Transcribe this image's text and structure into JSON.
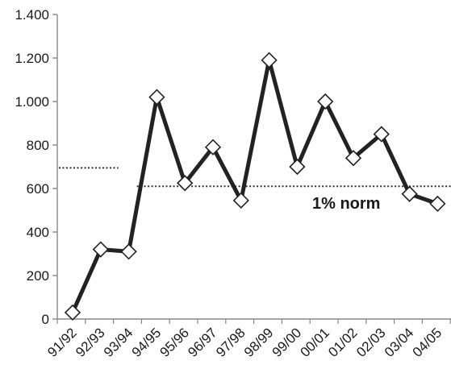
{
  "chart_data": {
    "type": "line",
    "categories": [
      "91/92",
      "92/93",
      "93/94",
      "94/95",
      "95/96",
      "96/97",
      "97/98",
      "98/99",
      "99/00",
      "00/01",
      "01/02",
      "02/03",
      "03/04",
      "04/05"
    ],
    "series": [
      {
        "values": [
          30,
          320,
          310,
          1020,
          625,
          790,
          545,
          1190,
          700,
          1000,
          740,
          850,
          575,
          530
        ],
        "marker": "diamond",
        "color": "#222222"
      }
    ],
    "ylim": [
      0,
      1400
    ],
    "yticks": [
      0,
      200,
      400,
      600,
      800,
      1000,
      1200,
      1400
    ],
    "ytick_labels": [
      "0",
      "200",
      "400",
      "600",
      "800",
      "1.000",
      "1.200",
      "1.400"
    ],
    "grid": false,
    "reference_lines": [
      {
        "y": 695,
        "x_from": "91/92",
        "x_to": "93/94",
        "style": "dotted"
      },
      {
        "y": 610,
        "x_from": "93/94",
        "x_to": "04/05",
        "style": "dotted"
      }
    ],
    "annotations": [
      {
        "text": "1% norm",
        "y": 530
      }
    ]
  }
}
